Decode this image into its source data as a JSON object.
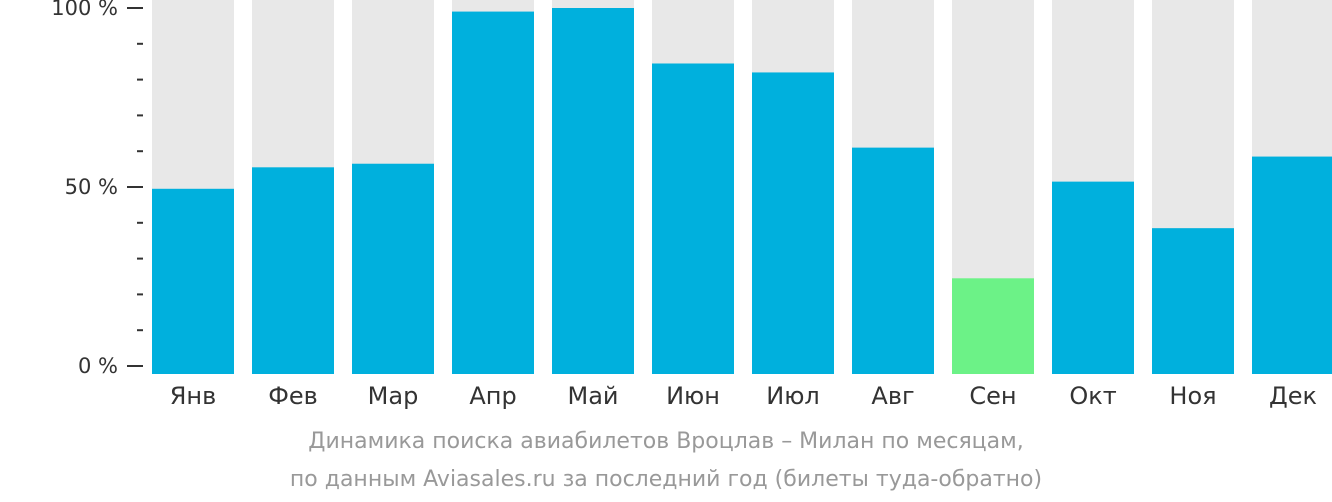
{
  "chart_data": {
    "type": "bar",
    "categories": [
      "Янв",
      "Фев",
      "Мар",
      "Апр",
      "Май",
      "Июн",
      "Июл",
      "Авг",
      "Сен",
      "Окт",
      "Ноя",
      "Дек"
    ],
    "values": [
      49.5,
      55.5,
      56.5,
      99,
      100,
      84.5,
      82,
      61,
      24.5,
      51.5,
      38.5,
      58.5
    ],
    "ylim": [
      0,
      100
    ],
    "yticks": [
      {
        "value": 0,
        "label": "0 %"
      },
      {
        "value": 50,
        "label": "50 %"
      },
      {
        "value": 100,
        "label": "100 %"
      }
    ],
    "minor_tick_step": 10,
    "highlight_index": 8,
    "colors": {
      "bar": "#00b0dd",
      "highlight": "#6cf287",
      "background_bar": "#e8e8e8",
      "axis": "#333333"
    }
  },
  "caption": {
    "line1": "Динамика поиска авиабилетов Вроцлав – Милан по месяцам,",
    "line2": "по данным Aviasales.ru за последний год (билеты туда-обратно)"
  }
}
